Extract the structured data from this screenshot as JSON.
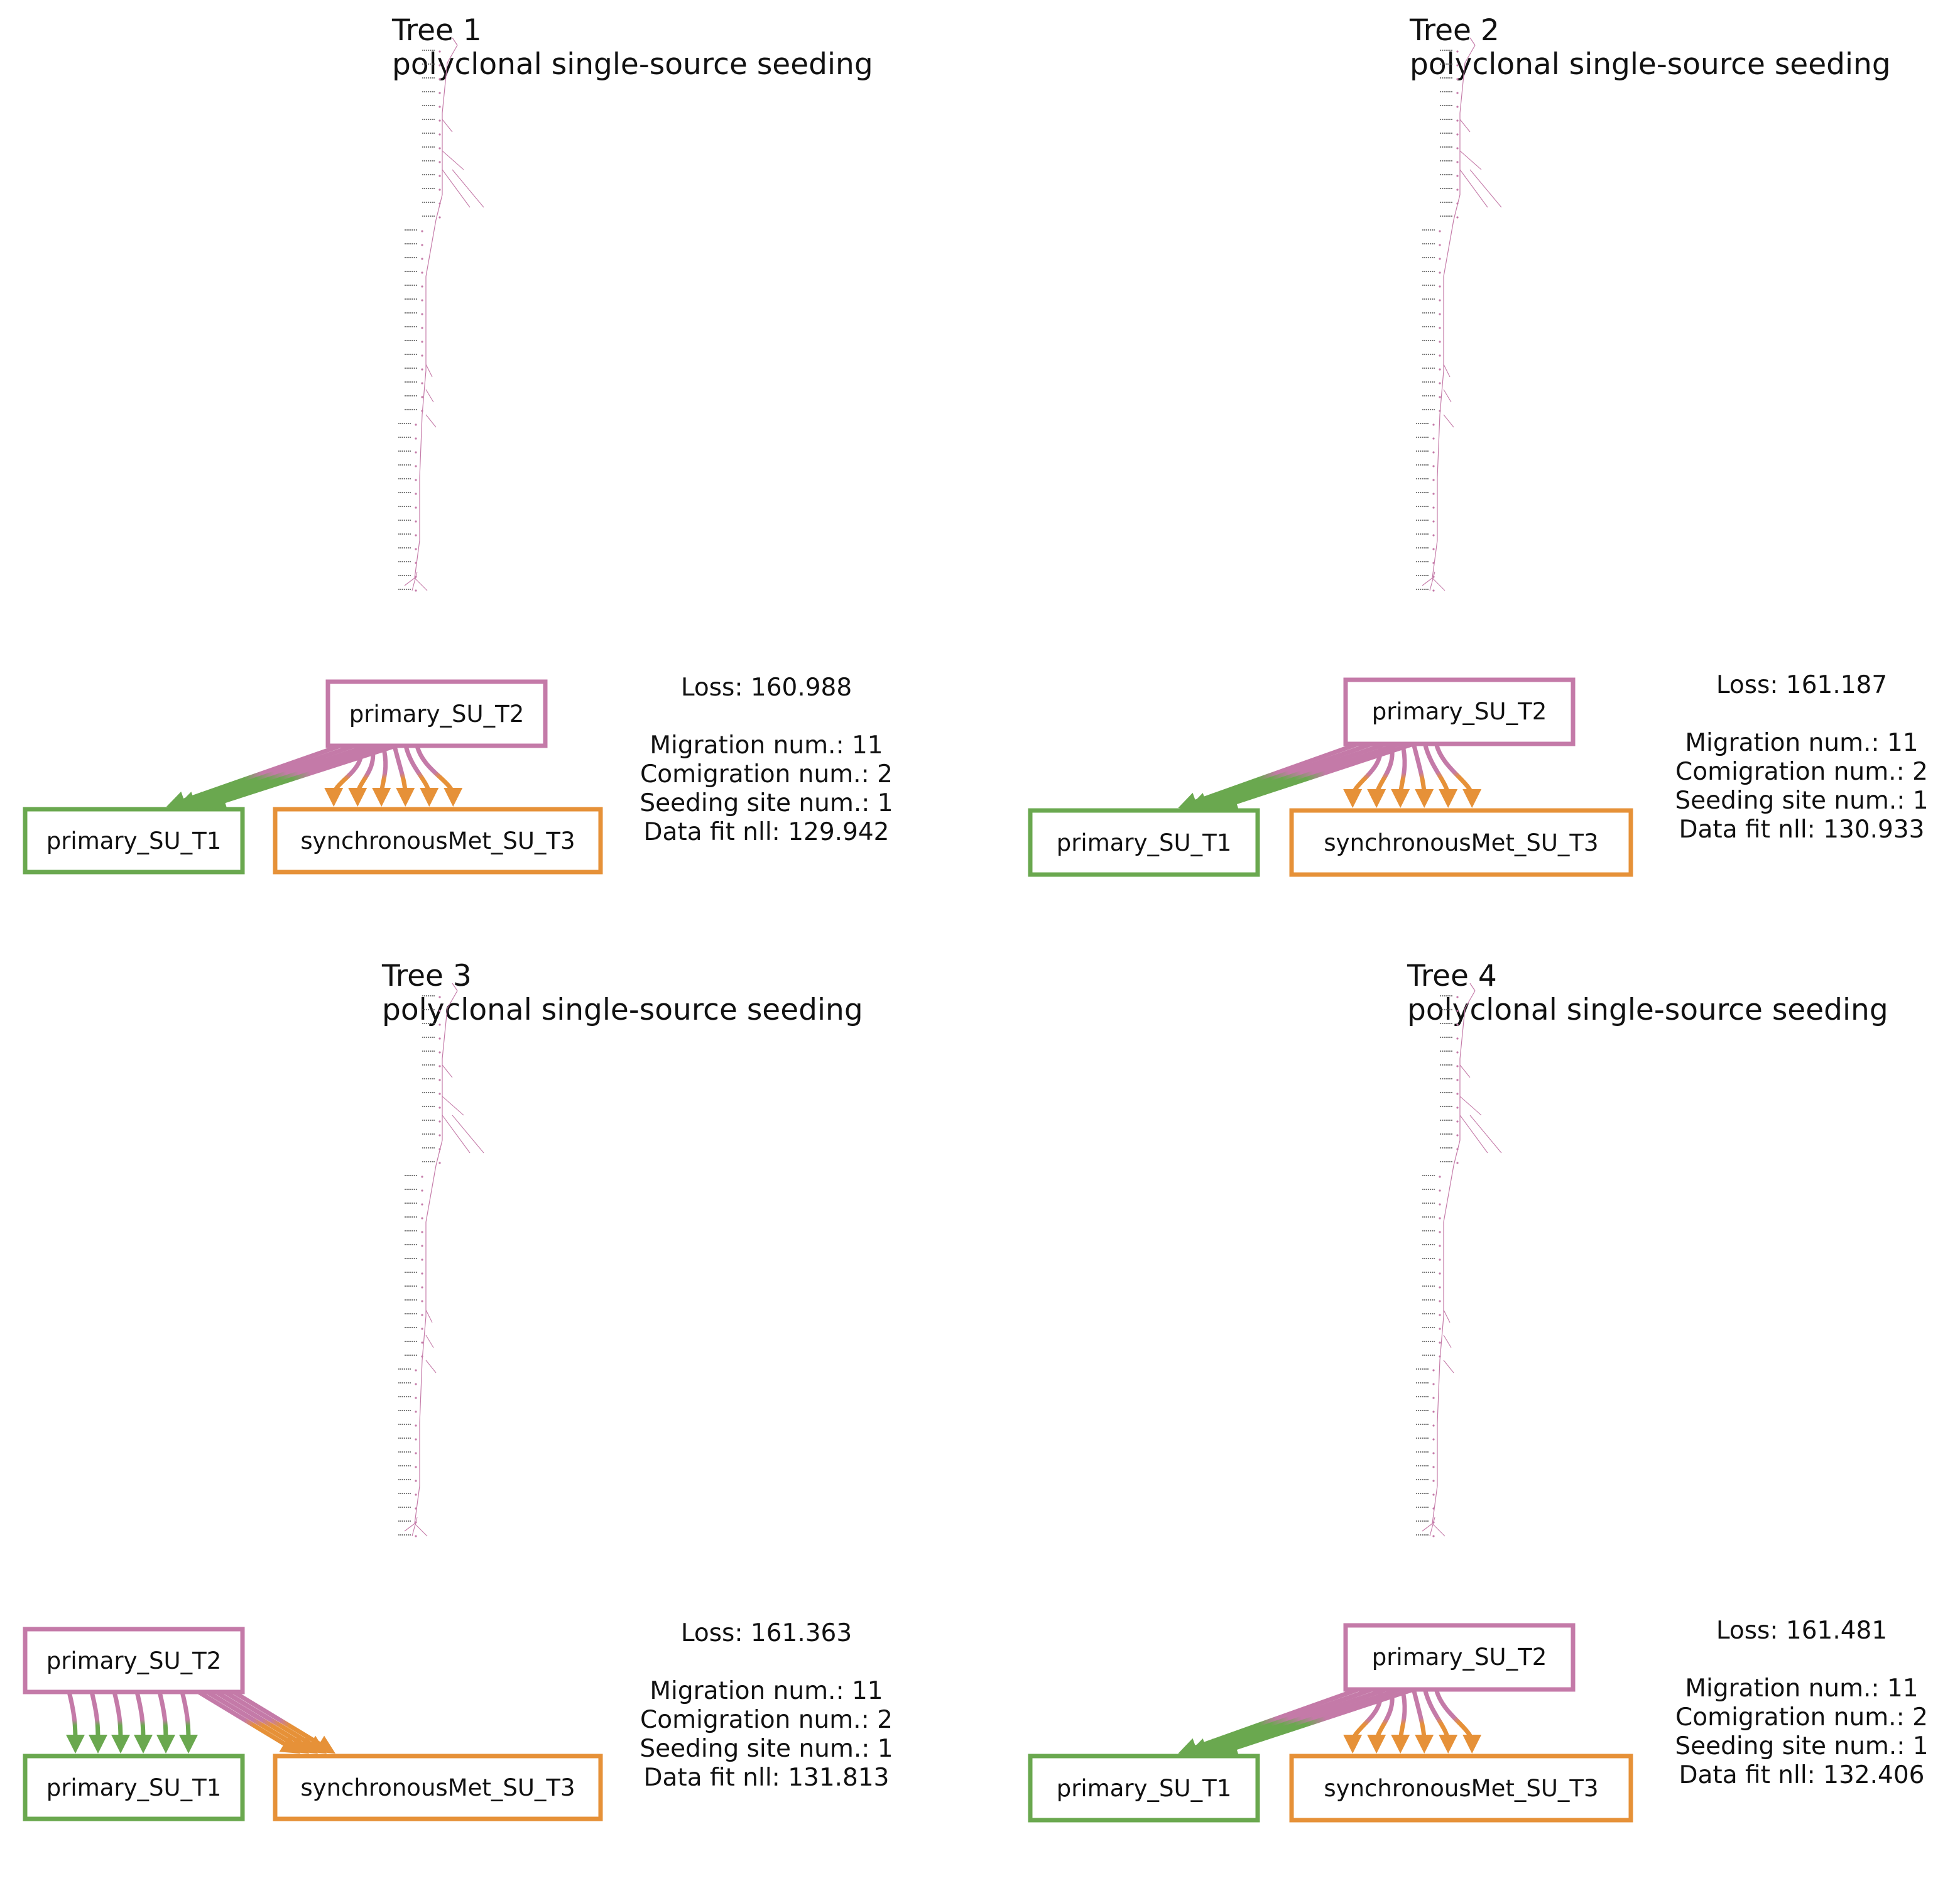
{
  "colors": {
    "primary_SU_T2": "#c47aa8",
    "primary_SU_T1": "#6aa84f",
    "synchronousMet_SU_T3": "#e69138",
    "tree_edge": "#c47aa8",
    "tree_label": "#555555"
  },
  "panels": [
    {
      "id": 1,
      "title": "Tree 1",
      "subtitle": "polyclonal single-source seeding",
      "nodes": {
        "source": "primary_SU_T2",
        "left": "primary_SU_T1",
        "right": "synchronousMet_SU_T3"
      },
      "layout": "source-top",
      "stats": {
        "loss": "Loss: 160.988",
        "migration": "Migration num.: 11",
        "comigration": "Comigration num.: 2",
        "seeding": "Seeding site num.: 1",
        "fit": "Data fit nll: 129.942"
      }
    },
    {
      "id": 2,
      "title": "Tree 2",
      "subtitle": "polyclonal single-source seeding",
      "nodes": {
        "source": "primary_SU_T2",
        "left": "primary_SU_T1",
        "right": "synchronousMet_SU_T3"
      },
      "layout": "source-top",
      "stats": {
        "loss": "Loss: 161.187",
        "migration": "Migration num.: 11",
        "comigration": "Comigration num.: 2",
        "seeding": "Seeding site num.: 1",
        "fit": "Data fit nll: 130.933"
      }
    },
    {
      "id": 3,
      "title": "Tree 3",
      "subtitle": "polyclonal single-source seeding",
      "nodes": {
        "source": "primary_SU_T2",
        "left": "primary_SU_T1",
        "right": "synchronousMet_SU_T3"
      },
      "layout": "source-left",
      "stats": {
        "loss": "Loss: 161.363",
        "migration": "Migration num.: 11",
        "comigration": "Comigration num.: 2",
        "seeding": "Seeding site num.: 1",
        "fit": "Data fit nll: 131.813"
      }
    },
    {
      "id": 4,
      "title": "Tree 4",
      "subtitle": "polyclonal single-source seeding",
      "nodes": {
        "source": "primary_SU_T2",
        "left": "primary_SU_T1",
        "right": "synchronousMet_SU_T3"
      },
      "layout": "source-top",
      "stats": {
        "loss": "Loss: 161.481",
        "migration": "Migration num.: 11",
        "comigration": "Comigration num.: 2",
        "seeding": "Seeding site num.: 1",
        "fit": "Data fit nll: 132.406"
      }
    }
  ]
}
